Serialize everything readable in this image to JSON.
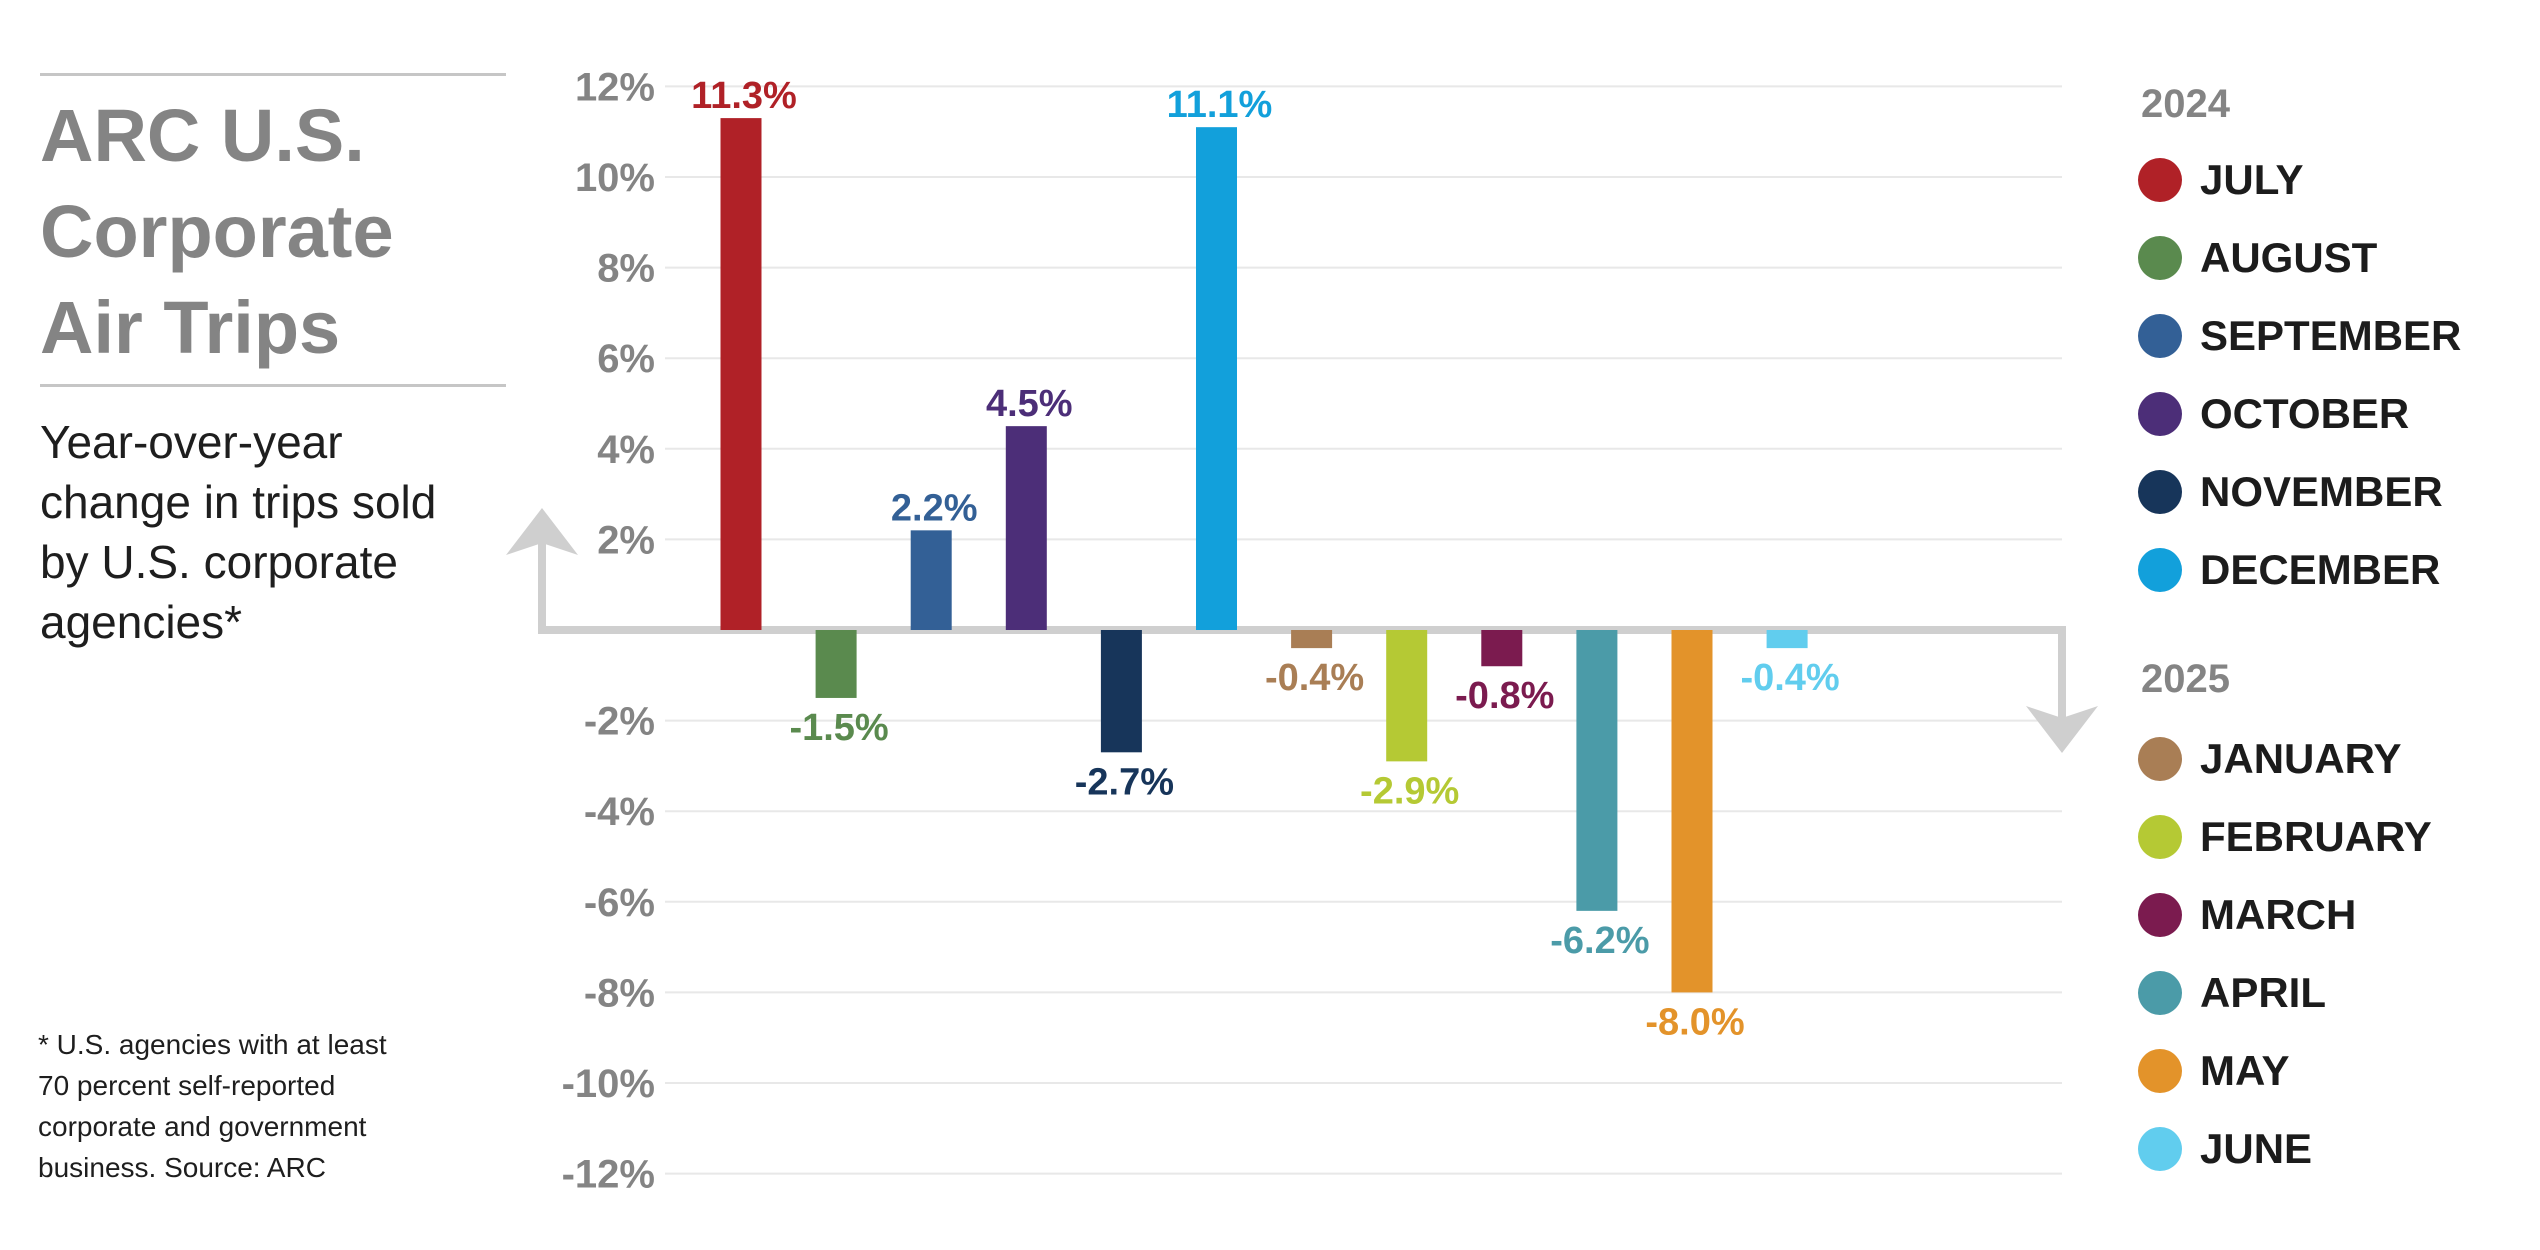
{
  "title_lines": [
    "ARC U.S.",
    "Corporate",
    "Air Trips"
  ],
  "subtitle_lines": [
    "Year-over-year",
    "change in trips sold",
    "by U.S. corporate",
    "agencies*"
  ],
  "footnote_lines": [
    "* U.S. agencies with at least",
    "70 percent self-reported",
    "corporate and government",
    "business. Source: ARC"
  ],
  "legend": {
    "groups": [
      {
        "year": "2024",
        "items": [
          {
            "label": "JULY",
            "color": "#b02127"
          },
          {
            "label": "AUGUST",
            "color": "#5a8a4e"
          },
          {
            "label": "SEPTEMBER",
            "color": "#336096"
          },
          {
            "label": "OCTOBER",
            "color": "#4c2e78"
          },
          {
            "label": "NOVEMBER",
            "color": "#17355a"
          },
          {
            "label": "DECEMBER",
            "color": "#12a0db"
          }
        ]
      },
      {
        "year": "2025",
        "items": [
          {
            "label": "JANUARY",
            "color": "#a97e55"
          },
          {
            "label": "FEBRUARY",
            "color": "#b5c934"
          },
          {
            "label": "MARCH",
            "color": "#7b1b4f"
          },
          {
            "label": "APRIL",
            "color": "#4b9ba8"
          },
          {
            "label": "MAY",
            "color": "#e3932a"
          },
          {
            "label": "JUNE",
            "color": "#61cdee"
          }
        ]
      }
    ]
  },
  "chart_data": {
    "type": "bar",
    "title": "ARC U.S. Corporate Air Trips",
    "subtitle": "Year-over-year change in trips sold by U.S. corporate agencies*",
    "categories": [
      "JULY",
      "AUGUST",
      "SEPTEMBER",
      "OCTOBER",
      "NOVEMBER",
      "DECEMBER",
      "JANUARY",
      "FEBRUARY",
      "MARCH",
      "APRIL",
      "MAY",
      "JUNE"
    ],
    "values": [
      11.3,
      -1.5,
      2.2,
      4.5,
      -2.7,
      11.1,
      -0.4,
      -2.9,
      -0.8,
      -6.2,
      -8.0,
      -0.4
    ],
    "data_labels": [
      "11.3%",
      "-1.5%",
      "2.2%",
      "4.5%",
      "-2.7%",
      "11.1%",
      "-0.4%",
      "-2.9%",
      "-0.8%",
      "-6.2%",
      "-8.0%",
      "-0.4%"
    ],
    "colors": [
      "#b02127",
      "#5a8a4e",
      "#336096",
      "#4c2e78",
      "#17355a",
      "#12a0db",
      "#a97e55",
      "#b5c934",
      "#7b1b4f",
      "#4b9ba8",
      "#e3932a",
      "#61cdee"
    ],
    "yticks": [
      12,
      10,
      8,
      6,
      4,
      2,
      -2,
      -4,
      -6,
      -8,
      -10,
      -12
    ],
    "ytick_labels": [
      "12%",
      "10%",
      "8%",
      "6%",
      "4%",
      "2%",
      "-2%",
      "-4%",
      "-6%",
      "-8%",
      "-10%",
      "-12%"
    ],
    "ylim": [
      -12,
      12
    ],
    "grid": true,
    "legend_position": "right",
    "xlabel": "",
    "ylabel": ""
  },
  "colors": {
    "title": "#848484",
    "text": "#1e1e1e",
    "axis": "#cfcfcf",
    "grid": "#e8e8e8",
    "tick": "#848484"
  }
}
